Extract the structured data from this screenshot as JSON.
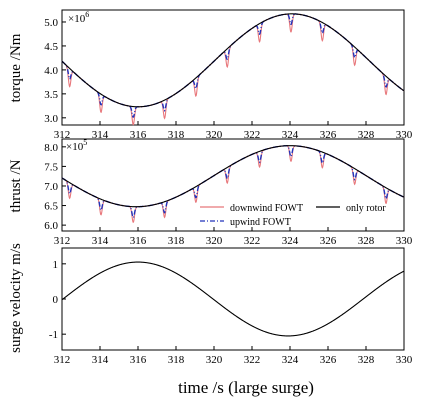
{
  "colors": {
    "downwind": "#e8777b",
    "upwind": "#2233bb",
    "only_rotor": "#000000",
    "surge": "#000000"
  },
  "xlabel": "time  /s   (large surge)",
  "legend": {
    "downwind": "downwind FOWT",
    "upwind": "upwind FOWT",
    "only_rotor": "only rotor"
  },
  "chart_data": [
    {
      "type": "line",
      "ylabel": "torque /Nm",
      "multiplier": "×10",
      "multiplier_exp": "6",
      "xlim": [
        312,
        330
      ],
      "ylim": [
        2.85,
        5.25
      ],
      "xticks": [
        "312",
        "314",
        "316",
        "318",
        "320",
        "322",
        "324",
        "326",
        "328",
        "330"
      ],
      "yticks": [
        "3.0",
        "3.5",
        "4.0",
        "4.5",
        "5.0"
      ],
      "ytick_values": [
        3.0,
        3.5,
        4.0,
        4.5,
        5.0
      ],
      "base": {
        "mean": 4.2,
        "amp": 0.97,
        "peak_time": 324.1,
        "period": 16.2
      },
      "series": [
        {
          "name": "only rotor",
          "key": "only_rotor",
          "dip_depth": 0
        },
        {
          "name": "upwind FOWT",
          "key": "upwind",
          "dip_depth": 0.22
        },
        {
          "name": "downwind FOWT",
          "key": "downwind",
          "dip_depth": 0.38
        }
      ],
      "dip_times": [
        312.4,
        314.05,
        315.75,
        317.4,
        319.05,
        320.7,
        322.4,
        324.05,
        325.7,
        327.4,
        329.05
      ]
    },
    {
      "type": "line",
      "ylabel": "thrust /N",
      "multiplier": "×10",
      "multiplier_exp": "5",
      "xlim": [
        312,
        330
      ],
      "ylim": [
        5.85,
        8.2
      ],
      "xticks": [
        "312",
        "314",
        "316",
        "318",
        "320",
        "322",
        "324",
        "326",
        "328",
        "330"
      ],
      "yticks": [
        "6.0",
        "6.5",
        "7.0",
        "7.5",
        "8.0"
      ],
      "ytick_values": [
        6.0,
        6.5,
        7.0,
        7.5,
        8.0
      ],
      "base": {
        "mean": 7.25,
        "amp": 0.78,
        "peak_time": 324.0,
        "period": 16.2
      },
      "series": [
        {
          "name": "only rotor",
          "key": "only_rotor",
          "dip_depth": 0
        },
        {
          "name": "upwind FOWT",
          "key": "upwind",
          "dip_depth": 0.28
        },
        {
          "name": "downwind FOWT",
          "key": "downwind",
          "dip_depth": 0.4
        }
      ],
      "dip_times": [
        312.4,
        314.05,
        315.75,
        317.4,
        319.05,
        320.7,
        322.4,
        324.05,
        325.7,
        327.4,
        329.05
      ]
    },
    {
      "type": "line",
      "ylabel": "surge velocity  m/s",
      "xlim": [
        312,
        330
      ],
      "ylim": [
        -1.45,
        1.45
      ],
      "xticks": [
        "312",
        "314",
        "316",
        "318",
        "320",
        "322",
        "324",
        "326",
        "328",
        "330"
      ],
      "yticks": [
        "-1",
        "0",
        "1"
      ],
      "ytick_values": [
        -1,
        0,
        1
      ],
      "base": {
        "mean": 0,
        "amp": 1.05,
        "peak_time": 316.0,
        "period": 15.8
      },
      "series": [
        {
          "name": "surge velocity",
          "key": "surge",
          "dip_depth": 0
        }
      ]
    }
  ]
}
